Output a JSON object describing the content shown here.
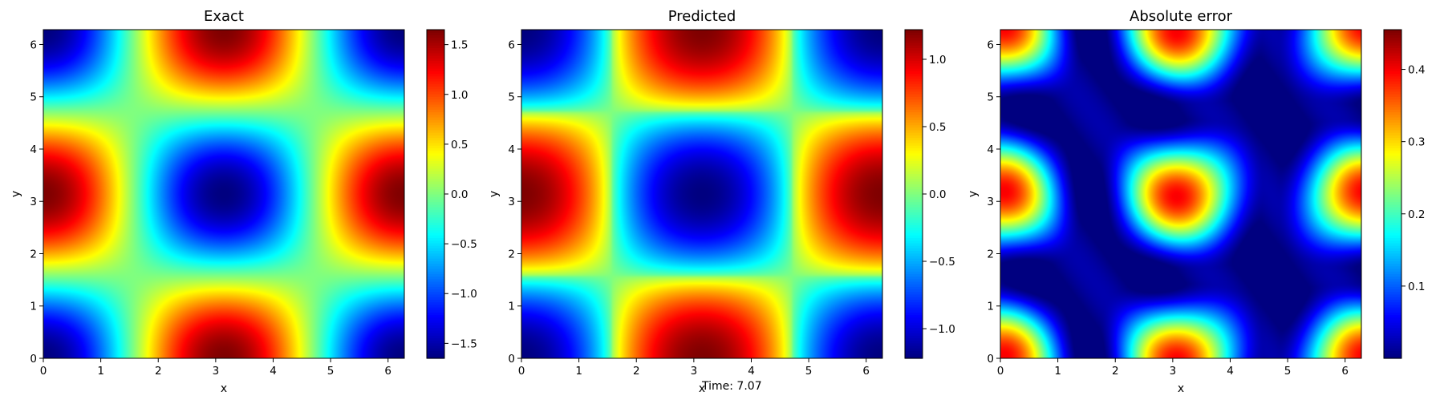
{
  "footer": {
    "time_label": "Time: 7.07"
  },
  "colormap": "jet",
  "chart_data": [
    {
      "type": "heatmap",
      "title": "Exact",
      "xlabel": "x",
      "ylabel": "y",
      "xlim": [
        0,
        6.283
      ],
      "ylim": [
        0,
        6.283
      ],
      "xticks": [
        "0",
        "1",
        "2",
        "3",
        "4",
        "5",
        "6"
      ],
      "yticks": [
        "0",
        "1",
        "2",
        "3",
        "4",
        "5",
        "6"
      ],
      "field": "exact",
      "colorbar": {
        "range": [
          -1.65,
          1.65
        ],
        "ticks": [
          -1.5,
          -1.0,
          -0.5,
          0.0,
          0.5,
          1.0,
          1.5
        ],
        "tick_labels": [
          "−1.5",
          "−1.0",
          "−0.5",
          "0.0",
          "0.5",
          "1.0",
          "1.5"
        ]
      }
    },
    {
      "type": "heatmap",
      "title": "Predicted",
      "xlabel": "x",
      "ylabel": "y",
      "xlim": [
        0,
        6.283
      ],
      "ylim": [
        0,
        6.283
      ],
      "xticks": [
        "0",
        "1",
        "2",
        "3",
        "4",
        "5",
        "6"
      ],
      "yticks": [
        "0",
        "1",
        "2",
        "3",
        "4",
        "5",
        "6"
      ],
      "field": "predicted",
      "colorbar": {
        "range": [
          -1.22,
          1.22
        ],
        "ticks": [
          -1.0,
          -0.5,
          0.0,
          0.5,
          1.0
        ],
        "tick_labels": [
          "−1.0",
          "−0.5",
          "0.0",
          "0.5",
          "1.0"
        ]
      }
    },
    {
      "type": "heatmap",
      "title": "Absolute error",
      "xlabel": "x",
      "ylabel": "y",
      "xlim": [
        0,
        6.283
      ],
      "ylim": [
        0,
        6.283
      ],
      "xticks": [
        "0",
        "1",
        "2",
        "3",
        "4",
        "5",
        "6"
      ],
      "yticks": [
        "0",
        "1",
        "2",
        "3",
        "4",
        "5",
        "6"
      ],
      "field": "error",
      "colorbar": {
        "range": [
          0.0,
          0.455
        ],
        "ticks": [
          0.1,
          0.2,
          0.3,
          0.4
        ],
        "tick_labels": [
          "0.1",
          "0.2",
          "0.3",
          "0.4"
        ]
      }
    }
  ]
}
